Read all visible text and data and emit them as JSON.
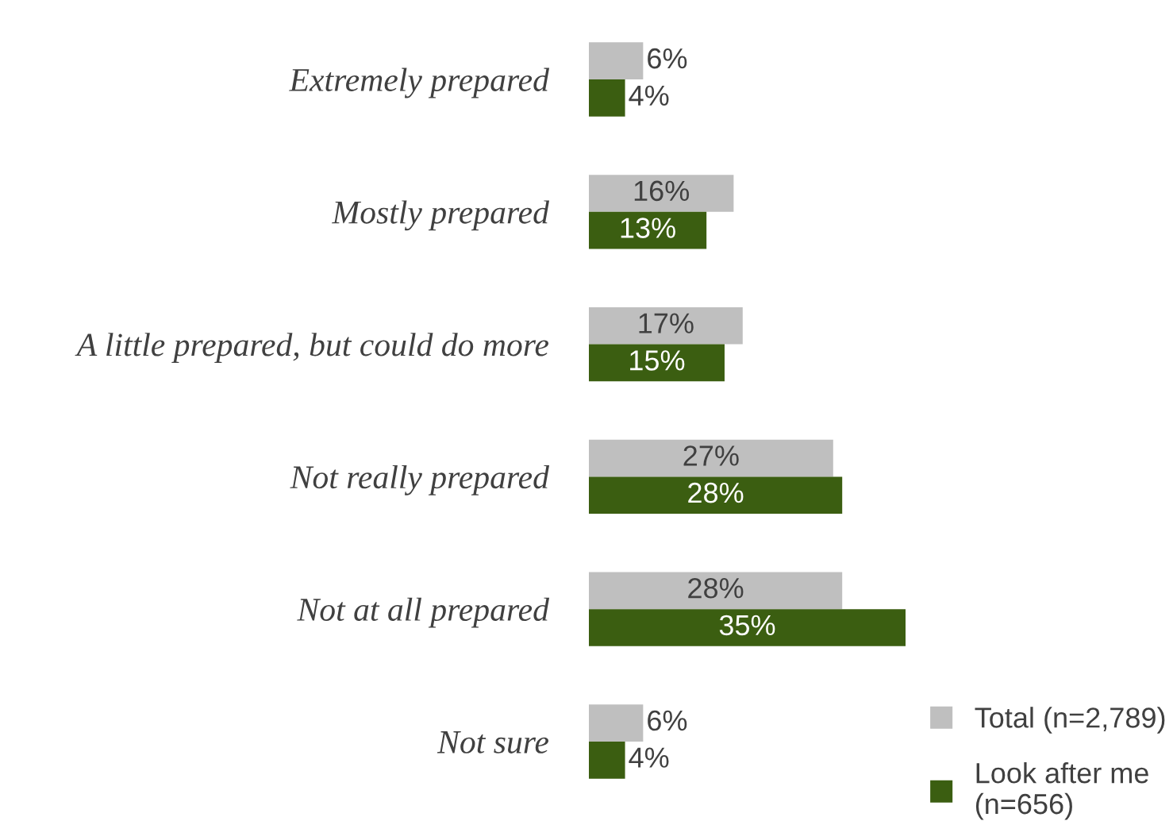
{
  "chart_data": {
    "type": "bar",
    "orientation": "horizontal",
    "categories": [
      "Extremely prepared",
      "Mostly prepared",
      "A little prepared, but could do more",
      "Not really prepared",
      "Not at all prepared",
      "Not sure"
    ],
    "series": [
      {
        "name": "Total (n=2,789)",
        "color": "#bfbfbf",
        "values": [
          6,
          16,
          17,
          27,
          28,
          6
        ],
        "value_labels": [
          "6%",
          "16%",
          "17%",
          "27%",
          "28%",
          "6%"
        ]
      },
      {
        "name": "Look after me\n(n=656)",
        "color": "#3b5e11",
        "values": [
          4,
          13,
          15,
          28,
          35,
          4
        ],
        "value_labels": [
          "4%",
          "13%",
          "15%",
          "28%",
          "35%",
          "4%"
        ]
      }
    ],
    "legend": "bottom right",
    "tick_labels": "y",
    "grid": false
  }
}
